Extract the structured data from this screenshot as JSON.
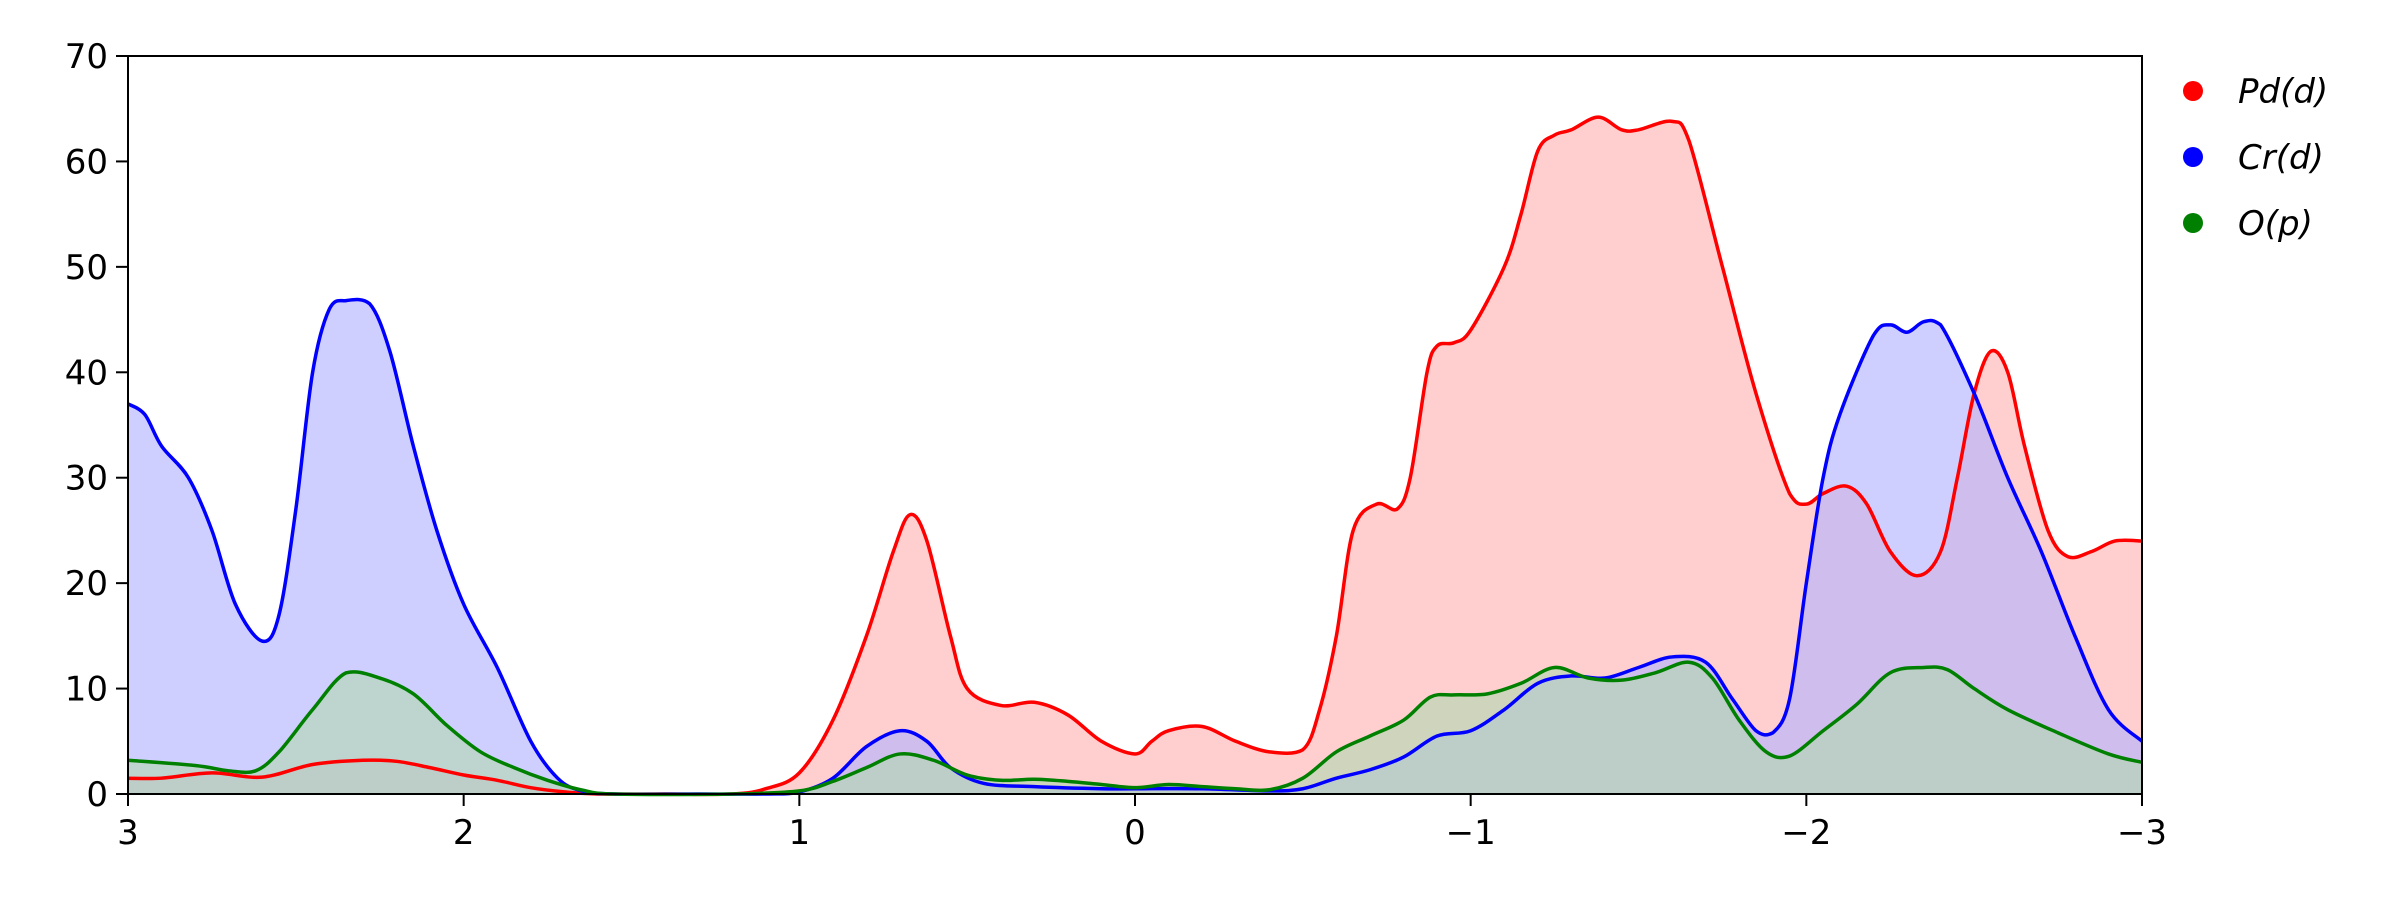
{
  "chart_data": {
    "type": "area",
    "x_axis": {
      "range": [
        3,
        -3
      ],
      "reversed": true,
      "ticks": [
        3,
        2,
        1,
        0,
        -1,
        -2,
        -3
      ],
      "tick_labels": [
        "3",
        "2",
        "1",
        "0",
        "−1",
        "−2",
        "−3"
      ]
    },
    "y_axis": {
      "range": [
        0,
        70
      ],
      "ticks": [
        0,
        10,
        20,
        30,
        40,
        50,
        60,
        70
      ],
      "tick_labels": [
        "0",
        "10",
        "20",
        "30",
        "40",
        "50",
        "60",
        "70"
      ]
    },
    "grid": false,
    "legend": {
      "placement": "outside-top-right"
    },
    "series": [
      {
        "name": "Pd(d)",
        "color": "#ff0000",
        "fill": "#ffb1b1",
        "points": [
          [
            3,
            1.5
          ],
          [
            2.9,
            1.5
          ],
          [
            2.75,
            2
          ],
          [
            2.6,
            1.6
          ],
          [
            2.45,
            2.8
          ],
          [
            2.3,
            3.2
          ],
          [
            2.2,
            3.1
          ],
          [
            2.1,
            2.5
          ],
          [
            2.0,
            1.8
          ],
          [
            1.9,
            1.3
          ],
          [
            1.8,
            0.6
          ],
          [
            1.7,
            0.2
          ],
          [
            1.6,
            0
          ],
          [
            1.4,
            0
          ],
          [
            1.2,
            0
          ],
          [
            1.1,
            0.5
          ],
          [
            1.0,
            2
          ],
          [
            0.9,
            7
          ],
          [
            0.8,
            15
          ],
          [
            0.72,
            23
          ],
          [
            0.67,
            26.5
          ],
          [
            0.62,
            24
          ],
          [
            0.55,
            15
          ],
          [
            0.5,
            10
          ],
          [
            0.4,
            8.4
          ],
          [
            0.3,
            8.7
          ],
          [
            0.2,
            7.5
          ],
          [
            0.1,
            5
          ],
          [
            0.0,
            3.8
          ],
          [
            -0.05,
            5
          ],
          [
            -0.1,
            6
          ],
          [
            -0.2,
            6.4
          ],
          [
            -0.3,
            5
          ],
          [
            -0.4,
            4
          ],
          [
            -0.5,
            4.2
          ],
          [
            -0.55,
            8
          ],
          [
            -0.6,
            15
          ],
          [
            -0.65,
            25
          ],
          [
            -0.72,
            27.5
          ],
          [
            -0.78,
            27
          ],
          [
            -0.82,
            30
          ],
          [
            -0.87,
            40
          ],
          [
            -0.9,
            42.5
          ],
          [
            -0.95,
            42.8
          ],
          [
            -1.0,
            44
          ],
          [
            -1.1,
            50
          ],
          [
            -1.15,
            55
          ],
          [
            -1.2,
            61
          ],
          [
            -1.25,
            62.5
          ],
          [
            -1.3,
            63
          ],
          [
            -1.38,
            64.2
          ],
          [
            -1.45,
            63
          ],
          [
            -1.5,
            63
          ],
          [
            -1.6,
            63.8
          ],
          [
            -1.65,
            62
          ],
          [
            -1.75,
            50
          ],
          [
            -1.85,
            38
          ],
          [
            -1.95,
            28.5
          ],
          [
            -2.0,
            27.5
          ],
          [
            -2.05,
            28.5
          ],
          [
            -2.12,
            29.2
          ],
          [
            -2.18,
            27.5
          ],
          [
            -2.25,
            23
          ],
          [
            -2.33,
            20.7
          ],
          [
            -2.4,
            23
          ],
          [
            -2.45,
            30
          ],
          [
            -2.5,
            38
          ],
          [
            -2.55,
            42
          ],
          [
            -2.6,
            40
          ],
          [
            -2.65,
            33
          ],
          [
            -2.72,
            25
          ],
          [
            -2.78,
            22.5
          ],
          [
            -2.85,
            23
          ],
          [
            -2.92,
            24
          ],
          [
            -3.0,
            24
          ]
        ]
      },
      {
        "name": "Cr(d)",
        "color": "#0000ff",
        "fill": "#b1b1ff",
        "points": [
          [
            3,
            37
          ],
          [
            2.95,
            36
          ],
          [
            2.9,
            33
          ],
          [
            2.82,
            30
          ],
          [
            2.75,
            25
          ],
          [
            2.68,
            18
          ],
          [
            2.6,
            14.5
          ],
          [
            2.55,
            17
          ],
          [
            2.5,
            27
          ],
          [
            2.45,
            40
          ],
          [
            2.4,
            46
          ],
          [
            2.35,
            46.8
          ],
          [
            2.28,
            46.5
          ],
          [
            2.22,
            42
          ],
          [
            2.15,
            33
          ],
          [
            2.08,
            25
          ],
          [
            2.0,
            18
          ],
          [
            1.9,
            12
          ],
          [
            1.8,
            5
          ],
          [
            1.72,
            1.5
          ],
          [
            1.65,
            0.3
          ],
          [
            1.55,
            0
          ],
          [
            1.3,
            0
          ],
          [
            1.1,
            0
          ],
          [
            1.0,
            0.2
          ],
          [
            0.9,
            1.5
          ],
          [
            0.8,
            4.5
          ],
          [
            0.7,
            6
          ],
          [
            0.62,
            5
          ],
          [
            0.55,
            2.5
          ],
          [
            0.45,
            1
          ],
          [
            0.3,
            0.7
          ],
          [
            0.1,
            0.5
          ],
          [
            0.0,
            0.5
          ],
          [
            -0.2,
            0.5
          ],
          [
            -0.4,
            0.3
          ],
          [
            -0.5,
            0.5
          ],
          [
            -0.6,
            1.5
          ],
          [
            -0.7,
            2.3
          ],
          [
            -0.8,
            3.5
          ],
          [
            -0.9,
            5.5
          ],
          [
            -1.0,
            6
          ],
          [
            -1.1,
            8
          ],
          [
            -1.2,
            10.5
          ],
          [
            -1.3,
            11.2
          ],
          [
            -1.4,
            11
          ],
          [
            -1.5,
            12
          ],
          [
            -1.6,
            13
          ],
          [
            -1.7,
            12.5
          ],
          [
            -1.78,
            9
          ],
          [
            -1.85,
            6
          ],
          [
            -1.9,
            5.8
          ],
          [
            -1.95,
            9
          ],
          [
            -2.0,
            20
          ],
          [
            -2.05,
            30
          ],
          [
            -2.1,
            36
          ],
          [
            -2.2,
            43.5
          ],
          [
            -2.25,
            44.5
          ],
          [
            -2.3,
            43.8
          ],
          [
            -2.35,
            44.8
          ],
          [
            -2.4,
            44.5
          ],
          [
            -2.5,
            38
          ],
          [
            -2.6,
            30
          ],
          [
            -2.7,
            23
          ],
          [
            -2.8,
            15
          ],
          [
            -2.9,
            8
          ],
          [
            -3.0,
            5
          ]
        ]
      },
      {
        "name": "O(p)",
        "color": "#008000",
        "fill": "#b1d7b1",
        "points": [
          [
            3,
            3.2
          ],
          [
            2.8,
            2.7
          ],
          [
            2.7,
            2.2
          ],
          [
            2.62,
            2.2
          ],
          [
            2.55,
            4
          ],
          [
            2.45,
            8
          ],
          [
            2.35,
            11.5
          ],
          [
            2.25,
            11
          ],
          [
            2.15,
            9.5
          ],
          [
            2.05,
            6.5
          ],
          [
            1.95,
            4
          ],
          [
            1.85,
            2.5
          ],
          [
            1.75,
            1.3
          ],
          [
            1.65,
            0.4
          ],
          [
            1.55,
            0
          ],
          [
            1.2,
            0
          ],
          [
            1.0,
            0.3
          ],
          [
            0.9,
            1.2
          ],
          [
            0.8,
            2.5
          ],
          [
            0.7,
            3.8
          ],
          [
            0.6,
            3.2
          ],
          [
            0.5,
            1.8
          ],
          [
            0.4,
            1.3
          ],
          [
            0.3,
            1.4
          ],
          [
            0.2,
            1.2
          ],
          [
            0.1,
            0.9
          ],
          [
            0.0,
            0.6
          ],
          [
            -0.1,
            0.9
          ],
          [
            -0.2,
            0.7
          ],
          [
            -0.3,
            0.5
          ],
          [
            -0.4,
            0.4
          ],
          [
            -0.5,
            1.5
          ],
          [
            -0.6,
            4
          ],
          [
            -0.7,
            5.5
          ],
          [
            -0.8,
            7
          ],
          [
            -0.88,
            9.2
          ],
          [
            -0.95,
            9.4
          ],
          [
            -1.05,
            9.5
          ],
          [
            -1.15,
            10.5
          ],
          [
            -1.25,
            12
          ],
          [
            -1.35,
            11
          ],
          [
            -1.45,
            10.8
          ],
          [
            -1.55,
            11.5
          ],
          [
            -1.65,
            12.5
          ],
          [
            -1.72,
            11
          ],
          [
            -1.8,
            7
          ],
          [
            -1.88,
            4
          ],
          [
            -1.95,
            3.6
          ],
          [
            -2.05,
            6
          ],
          [
            -2.15,
            8.5
          ],
          [
            -2.25,
            11.5
          ],
          [
            -2.35,
            12
          ],
          [
            -2.42,
            11.8
          ],
          [
            -2.5,
            10
          ],
          [
            -2.6,
            8
          ],
          [
            -2.75,
            5.8
          ],
          [
            -2.9,
            3.8
          ],
          [
            -3.0,
            3
          ]
        ]
      }
    ]
  }
}
